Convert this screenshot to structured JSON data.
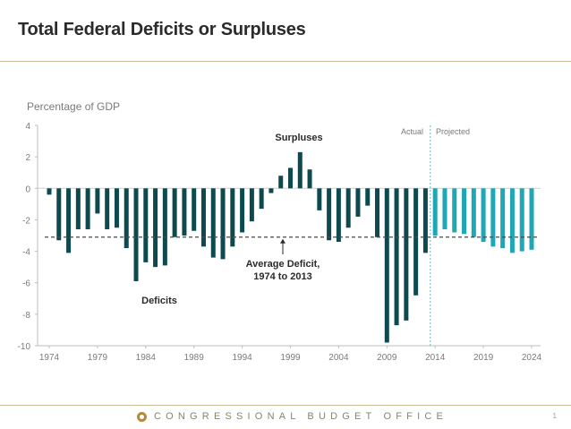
{
  "slide": {
    "title": "Total Federal Deficits or Surpluses",
    "footer_org": "CONGRESSIONAL BUDGET OFFICE",
    "page_number": "1",
    "logo_icon": "cbo-seal-icon"
  },
  "chart_data": {
    "type": "bar",
    "title": "",
    "ylabel": "Percentage of GDP",
    "xlabel": "",
    "ylim": [
      -10,
      4
    ],
    "yticks": [
      4,
      2,
      0,
      -2,
      -4,
      -6,
      -8,
      -10
    ],
    "xticks": [
      "1974",
      "1979",
      "1984",
      "1989",
      "1994",
      "1999",
      "2004",
      "2009",
      "2014",
      "2019",
      "2024"
    ],
    "grid": false,
    "x": [
      1974,
      1975,
      1976,
      1977,
      1978,
      1979,
      1980,
      1981,
      1982,
      1983,
      1984,
      1985,
      1986,
      1987,
      1988,
      1989,
      1990,
      1991,
      1992,
      1993,
      1994,
      1995,
      1996,
      1997,
      1998,
      1999,
      2000,
      2001,
      2002,
      2003,
      2004,
      2005,
      2006,
      2007,
      2008,
      2009,
      2010,
      2011,
      2012,
      2013,
      2014,
      2015,
      2016,
      2017,
      2018,
      2019,
      2020,
      2021,
      2022,
      2023,
      2024
    ],
    "values": [
      -0.4,
      -3.3,
      -4.1,
      -2.6,
      -2.6,
      -1.6,
      -2.6,
      -2.5,
      -3.8,
      -5.9,
      -4.7,
      -5.0,
      -4.9,
      -3.1,
      -3.0,
      -2.7,
      -3.7,
      -4.4,
      -4.5,
      -3.7,
      -2.8,
      -2.1,
      -1.3,
      -0.3,
      0.8,
      1.3,
      2.3,
      1.2,
      -1.4,
      -3.3,
      -3.4,
      -2.5,
      -1.8,
      -1.1,
      -3.1,
      -9.8,
      -8.7,
      -8.4,
      -6.8,
      -4.1,
      -3.0,
      -2.6,
      -2.8,
      -2.9,
      -3.1,
      -3.4,
      -3.7,
      -3.8,
      -4.1,
      -4.0,
      -3.9
    ],
    "projected_from": 2014,
    "colors": {
      "actual": "#0d4a4f",
      "projected": "#1fa7b5",
      "average_line": "#4a4a4a",
      "divider": "#6bb8c4"
    },
    "average": {
      "value": -3.1,
      "label_line1": "Average Deficit,",
      "label_line2": "1974 to 2013"
    },
    "annotations": {
      "surpluses": "Surpluses",
      "deficits": "Deficits",
      "actual": "Actual",
      "projected": "Projected"
    }
  }
}
